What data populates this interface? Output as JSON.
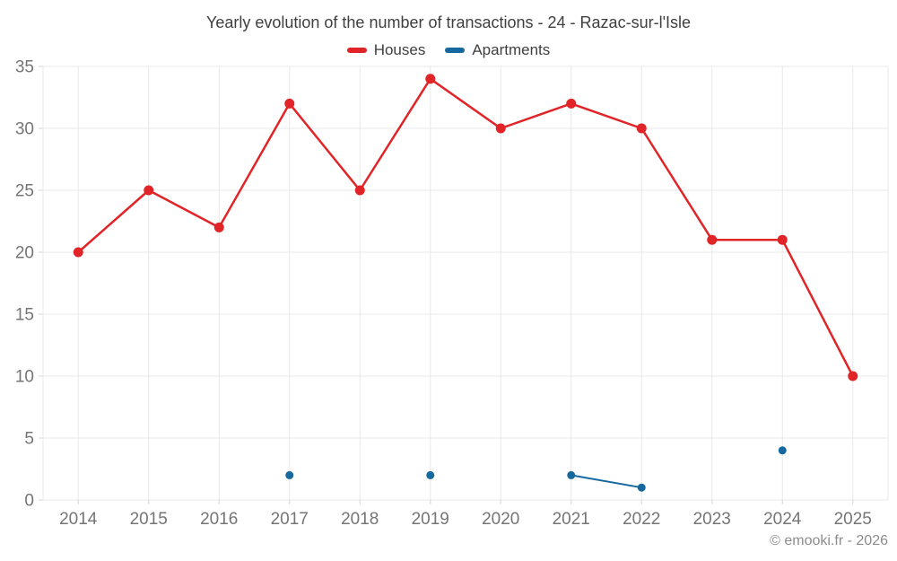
{
  "header": {
    "title": "Yearly evolution of the number of transactions - 24 - Razac-sur-l'Isle"
  },
  "footer": {
    "credit": "© emooki.fr - 2026"
  },
  "colors": {
    "houses": "#e02427",
    "apartments": "#15699f",
    "grid": "#e8e8e8",
    "tick": "#d4d4d4",
    "axis_label": "#757575",
    "title_text": "#3f3f3f",
    "footer_text": "#8c8c8c"
  },
  "chart_data": {
    "type": "line",
    "title": "Yearly evolution of the number of transactions - 24 - Razac-sur-l'Isle",
    "categories": [
      "2014",
      "2015",
      "2016",
      "2017",
      "2018",
      "2019",
      "2020",
      "2021",
      "2022",
      "2023",
      "2024",
      "2025"
    ],
    "series": [
      {
        "name": "Houses",
        "color": "#e02427",
        "values": [
          20,
          25,
          22,
          32,
          25,
          34,
          30,
          32,
          30,
          21,
          21,
          10
        ],
        "marker_radius": 5.5,
        "line_width": 2.5
      },
      {
        "name": "Apartments",
        "color": "#15699f",
        "values": [
          null,
          null,
          null,
          2,
          null,
          2,
          null,
          2,
          1,
          null,
          4,
          null
        ],
        "marker_radius": 4.5,
        "line_width": 2
      }
    ],
    "xlabel": "",
    "ylabel": "",
    "ylim": [
      0,
      35
    ],
    "yticks": [
      0,
      5,
      10,
      15,
      20,
      25,
      30,
      35
    ],
    "grid": true,
    "legend_position": "top"
  }
}
